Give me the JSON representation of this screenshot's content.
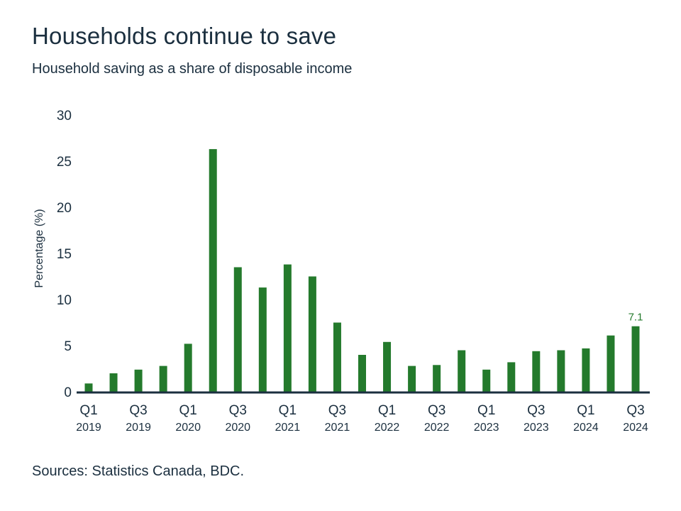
{
  "chart_data": {
    "type": "bar",
    "title": "Households continue to save",
    "subtitle": "Household saving as a share of disposable income",
    "xlabel": "",
    "ylabel": "Percentage (%)",
    "ylim": [
      0,
      30
    ],
    "yticks": [
      0,
      5,
      10,
      15,
      20,
      25,
      30
    ],
    "grid": false,
    "categories": [
      "Q1 2019",
      "Q2 2019",
      "Q3 2019",
      "Q4 2019",
      "Q1 2020",
      "Q2 2020",
      "Q3 2020",
      "Q4 2020",
      "Q1 2021",
      "Q2 2021",
      "Q3 2021",
      "Q4 2021",
      "Q1 2022",
      "Q2 2022",
      "Q3 2022",
      "Q4 2022",
      "Q1 2023",
      "Q2 2023",
      "Q3 2023",
      "Q4 2023",
      "Q1 2024",
      "Q2 2024",
      "Q3 2024"
    ],
    "values": [
      0.9,
      2.0,
      2.4,
      2.8,
      5.2,
      26.3,
      13.5,
      11.3,
      13.8,
      12.5,
      7.5,
      4.0,
      5.4,
      2.8,
      2.9,
      4.5,
      2.4,
      3.2,
      4.4,
      4.5,
      4.7,
      6.1,
      7.1
    ],
    "xtick_labels": [
      {
        "index": 0,
        "quarter": "Q1",
        "year": "2019"
      },
      {
        "index": 2,
        "quarter": "Q3",
        "year": "2019"
      },
      {
        "index": 4,
        "quarter": "Q1",
        "year": "2020"
      },
      {
        "index": 6,
        "quarter": "Q3",
        "year": "2020"
      },
      {
        "index": 8,
        "quarter": "Q1",
        "year": "2021"
      },
      {
        "index": 10,
        "quarter": "Q3",
        "year": "2021"
      },
      {
        "index": 12,
        "quarter": "Q1",
        "year": "2022"
      },
      {
        "index": 14,
        "quarter": "Q3",
        "year": "2022"
      },
      {
        "index": 16,
        "quarter": "Q1",
        "year": "2023"
      },
      {
        "index": 18,
        "quarter": "Q3",
        "year": "2023"
      },
      {
        "index": 20,
        "quarter": "Q1",
        "year": "2024"
      },
      {
        "index": 22,
        "quarter": "Q3",
        "year": "2024"
      }
    ],
    "annotations": [
      {
        "index": 22,
        "text": "7.1"
      }
    ],
    "colors": {
      "bar": "#247a2c",
      "axis": "#1b2f3f",
      "text": "#1b2f3f"
    }
  },
  "footer": {
    "source": "Sources: Statistics Canada, BDC."
  }
}
